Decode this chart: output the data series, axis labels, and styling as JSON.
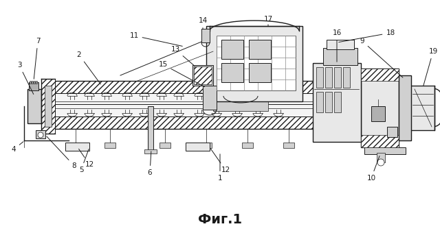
{
  "figure_caption": "Фиг.1",
  "caption_fontsize": 14,
  "caption_fontweight": "bold",
  "bg_color": "#ffffff",
  "line_color": "#1a1a1a",
  "fig_width": 6.4,
  "fig_height": 3.4,
  "dpi": 100,
  "lw_main": 1.0,
  "lw_thin": 0.5,
  "lw_med": 0.7,
  "gray_light": "#e8e8e8",
  "gray_mid": "#d0d0d0",
  "gray_dark": "#b0b0b0",
  "hatch_color": "#888888"
}
